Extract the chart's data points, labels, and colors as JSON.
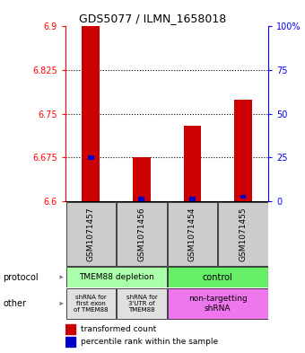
{
  "title": "GDS5077 / ILMN_1658018",
  "samples": [
    "GSM1071457",
    "GSM1071456",
    "GSM1071454",
    "GSM1071455"
  ],
  "red_values": [
    6.9,
    6.675,
    6.73,
    6.775
  ],
  "blue_values": [
    6.675,
    6.604,
    6.604,
    6.608
  ],
  "ylim_left": [
    6.6,
    6.9
  ],
  "ylim_right": [
    0,
    100
  ],
  "yticks_left": [
    6.6,
    6.675,
    6.75,
    6.825,
    6.9
  ],
  "ytick_labels_left": [
    "6.6",
    "6.675",
    "6.75",
    "6.825",
    "6.9"
  ],
  "yticks_right": [
    0,
    25,
    50,
    75,
    100
  ],
  "ytick_labels_right": [
    "0",
    "25",
    "50",
    "75",
    "100%"
  ],
  "dotted_lines": [
    6.675,
    6.75,
    6.825
  ],
  "protocol_label_left": "TMEM88 depletion",
  "protocol_label_right": "control",
  "protocol_color_left": "#aaffaa",
  "protocol_color_right": "#66ee66",
  "other_label_0": "shRNA for\nfirst exon\nof TMEM88",
  "other_label_1": "shRNA for\n3'UTR of\nTMEM88",
  "other_label_2": "non-targetting\nshRNA",
  "other_color_gray": "#e0e0e0",
  "other_color_pink": "#ee77ee",
  "legend_red": "transformed count",
  "legend_blue": "percentile rank within the sample",
  "bar_color_red": "#cc0000",
  "bar_color_blue": "#0000cc",
  "sample_bg_color": "#cccccc",
  "fig_width": 3.4,
  "fig_height": 3.93,
  "dpi": 100
}
